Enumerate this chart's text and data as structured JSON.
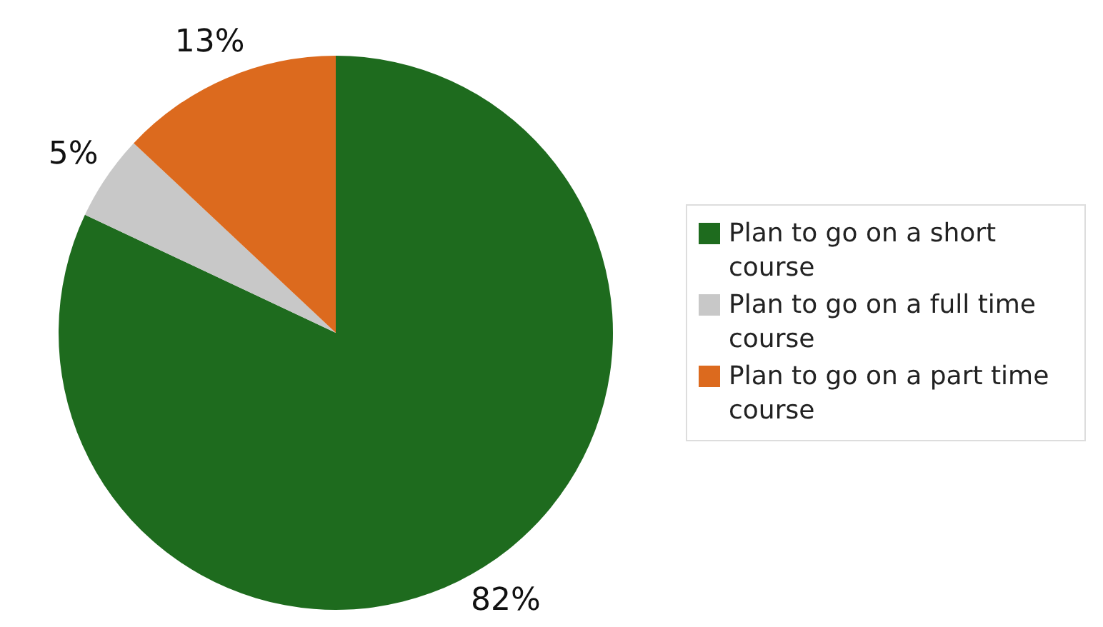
{
  "chart_data": {
    "type": "pie",
    "categories": [
      "Plan to go on a short course",
      "Plan to go on a full time course",
      "Plan to go on a part time course"
    ],
    "values": [
      82,
      5,
      13
    ],
    "value_labels": [
      "82%",
      "5%",
      "13%"
    ],
    "colors": [
      "#1e6b1e",
      "#c8c8c8",
      "#dc6a1e"
    ],
    "legend": "right"
  }
}
